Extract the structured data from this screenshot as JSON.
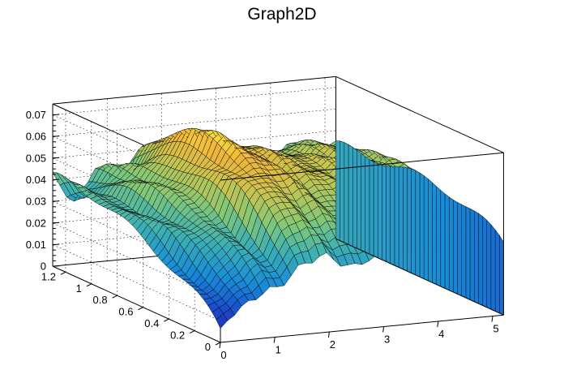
{
  "chart_data": {
    "type": "surface3d",
    "title": "Graph2D",
    "xlabel": "",
    "ylabel": "",
    "zlabel": "",
    "xlim": [
      0,
      5.2
    ],
    "ylim": [
      0,
      1.3
    ],
    "zlim": [
      0,
      0.075
    ],
    "x_ticks": [
      "0",
      "1",
      "2",
      "3",
      "4",
      "5"
    ],
    "y_ticks": [
      "0",
      "0.2",
      "0.4",
      "0.6",
      "0.8",
      "1",
      "1.2"
    ],
    "z_ticks": [
      "0",
      "0.01",
      "0.02",
      "0.03",
      "0.04",
      "0.05",
      "0.06",
      "0.07"
    ],
    "colormap": "viridis-like (blue → green → yellow)",
    "grid": true,
    "surface_profile": {
      "x": [
        0,
        0.4,
        0.8,
        1.2,
        1.6,
        2.0,
        2.4,
        2.8,
        3.2,
        3.6,
        4.0,
        4.4,
        4.8,
        5.2
      ],
      "z_at_y0": [
        0.005,
        0.015,
        0.025,
        0.033,
        0.035,
        0.033,
        0.031,
        0.03,
        0.032,
        0.031,
        0.033,
        0.032,
        0.034,
        0.033
      ],
      "z_at_y1.3": [
        0.04,
        0.03,
        0.043,
        0.036,
        0.05,
        0.044,
        0.038,
        0.043,
        0.032,
        0.038,
        0.041,
        0.043,
        0.044,
        0.043
      ],
      "ridge_z": [
        0.035,
        0.04,
        0.05,
        0.06,
        0.072,
        0.068,
        0.062,
        0.06,
        0.058,
        0.057,
        0.056,
        0.054,
        0.05,
        0.047
      ]
    }
  }
}
